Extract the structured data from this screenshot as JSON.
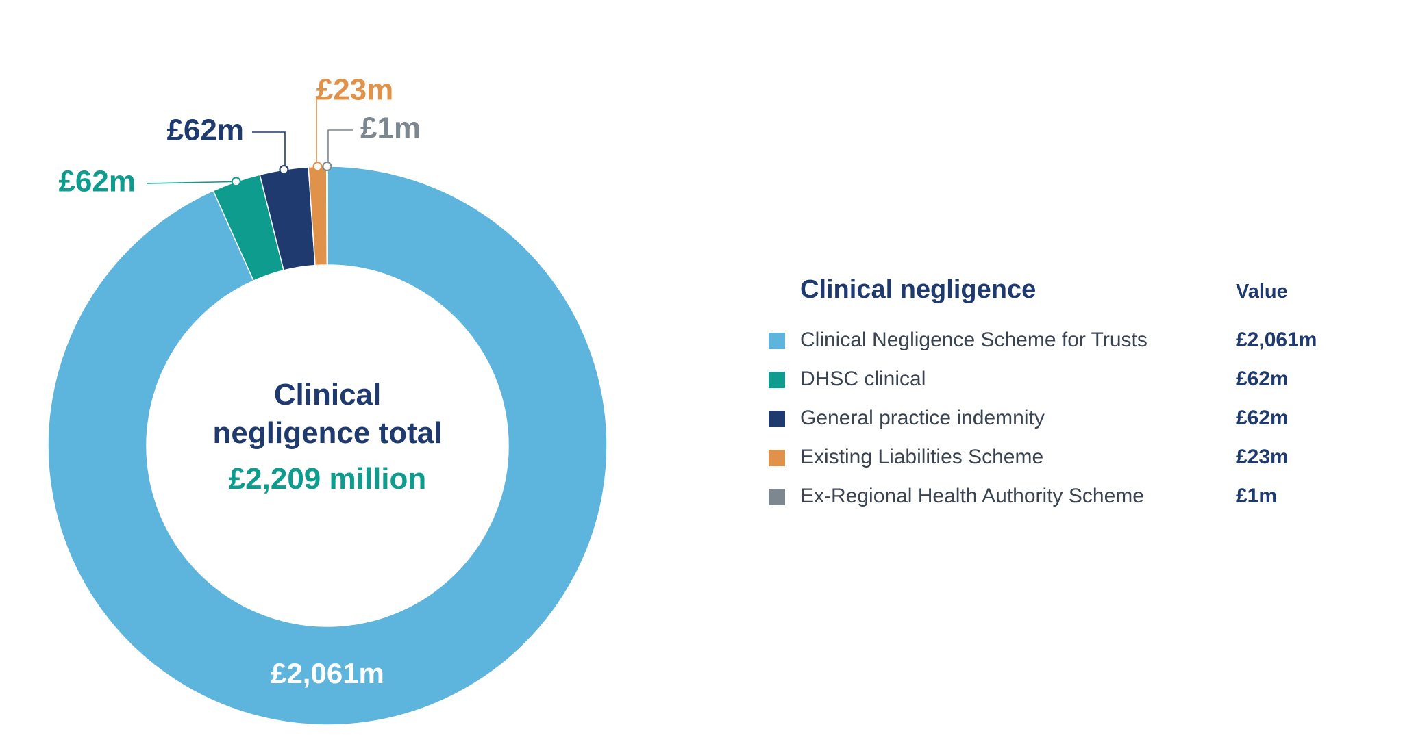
{
  "chart_data": {
    "type": "pie",
    "variant": "donut",
    "center": {
      "title_line1": "Clinical",
      "title_line2": "negligence total",
      "value": "£2,209 million"
    },
    "slices": [
      {
        "name": "Clinical Negligence Scheme for Trusts",
        "value": 2061,
        "label": "£2,061m",
        "value_text": "£2,061m",
        "color": "#5db4dc"
      },
      {
        "name": "DHSC clinical",
        "value": 62,
        "label": "£62m",
        "value_text": "£62m",
        "color": "#0d9c8d"
      },
      {
        "name": "General practice indemnity",
        "value": 62,
        "label": "£62m",
        "value_text": "£62m",
        "color": "#1f3a6e"
      },
      {
        "name": "Existing Liabilities Scheme",
        "value": 23,
        "label": "£23m",
        "value_text": "£23m",
        "color": "#e0914a"
      },
      {
        "name": "Ex-Regional Health Authority Scheme",
        "value": 1,
        "label": "£1m",
        "value_text": "£1m",
        "color": "#7d8790"
      }
    ],
    "legend": {
      "title": "Clinical negligence",
      "value_header": "Value",
      "placement": "right"
    }
  }
}
